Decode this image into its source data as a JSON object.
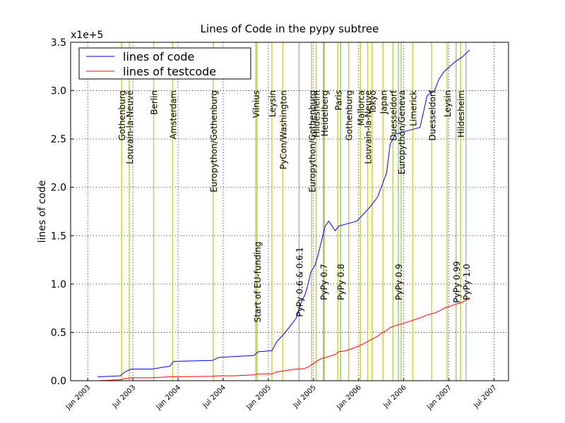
{
  "chart_data": {
    "type": "line",
    "title": "Lines of Code in the pypy subtree",
    "ylabel": "lines of code",
    "y_offset_label": "x1e+5",
    "x": [
      2003.11,
      2003.36,
      2003.41,
      2003.48,
      2003.71,
      2003.91,
      2003.95,
      2004.38,
      2004.45,
      2004.61,
      2004.84,
      2004.89,
      2005.04,
      2005.09,
      2005.16,
      2005.23,
      2005.31,
      2005.36,
      2005.41,
      2005.44,
      2005.47,
      2005.52,
      2005.55,
      2005.59,
      2005.63,
      2005.67,
      2005.74,
      2005.78,
      2005.86,
      2005.98,
      2006.05,
      2006.13,
      2006.21,
      2006.25,
      2006.31,
      2006.35,
      2006.41,
      2006.52,
      2006.68,
      2006.76,
      2006.84,
      2006.89,
      2006.95,
      2007.07,
      2007.15,
      2007.23
    ],
    "series": [
      {
        "name": "lines of code",
        "color": "#0000ff",
        "values": [
          0.04,
          0.05,
          0.09,
          0.12,
          0.12,
          0.15,
          0.2,
          0.21,
          0.24,
          0.25,
          0.26,
          0.3,
          0.31,
          0.4,
          0.47,
          0.55,
          0.65,
          0.8,
          0.9,
          1.0,
          1.12,
          1.2,
          1.3,
          1.45,
          1.6,
          1.65,
          1.55,
          1.6,
          1.62,
          1.65,
          1.72,
          1.8,
          1.9,
          2.0,
          2.15,
          2.45,
          2.55,
          2.58,
          2.62,
          2.95,
          3.0,
          3.12,
          3.2,
          3.3,
          3.35,
          3.42
        ]
      },
      {
        "name": "lines of testcode",
        "color": "#ff0000",
        "values": [
          0.0,
          0.01,
          0.02,
          0.03,
          0.03,
          0.04,
          0.04,
          0.045,
          0.05,
          0.05,
          0.06,
          0.07,
          0.07,
          0.09,
          0.1,
          0.11,
          0.12,
          0.12,
          0.13,
          0.14,
          0.16,
          0.19,
          0.21,
          0.23,
          0.24,
          0.25,
          0.27,
          0.3,
          0.31,
          0.35,
          0.38,
          0.42,
          0.46,
          0.49,
          0.52,
          0.55,
          0.57,
          0.6,
          0.65,
          0.68,
          0.7,
          0.72,
          0.75,
          0.79,
          0.81,
          0.86
        ]
      }
    ],
    "events": {
      "color": "#bfbf00",
      "labels": [
        "Gothenburg",
        "Louvain-la-Neuve",
        "Berlin",
        "Amsterdam",
        "Europython/Gothenburg",
        "Vilnius",
        "Leysin",
        "PyCon/Washington",
        "Europython/Gothenburg",
        "Hildesheim",
        "Heidelberg",
        "Paris",
        "Gothenburg",
        "Mallorca",
        "Louvain-la-Neuve",
        "Tokyo",
        "Japan",
        "Duesseldorf",
        "Europython/Geneva",
        "Limerick",
        "Duesseldorf",
        "Leysin",
        "Hildesheim"
      ],
      "x": [
        2003.375,
        2003.46,
        2003.73,
        2003.94,
        2004.39,
        2004.86,
        2005.04,
        2005.16,
        2005.48,
        2005.53,
        2005.62,
        2005.77,
        2005.89,
        2006.02,
        2006.1,
        2006.15,
        2006.27,
        2006.38,
        2006.47,
        2006.6,
        2006.81,
        2006.98,
        2007.13
      ]
    },
    "releases": {
      "color": "#66b366",
      "labels": [
        "Start of EU-funding",
        "PyPy 0.6 & 0.6.1",
        "PyPy 0.7",
        "PyPy 0.8",
        "PyPy 0.9",
        "PyPy 0.99",
        "PyPy 1.0"
      ],
      "x": [
        2004.875,
        2005.34,
        2005.61,
        2005.8,
        2006.44,
        2007.08,
        2007.19
      ]
    },
    "xlim": [
      2002.81,
      2007.66
    ],
    "ylim": [
      0,
      3.5
    ],
    "xticks": [
      {
        "value": 2003,
        "label": "Jan 2003"
      },
      {
        "value": 2003.5,
        "label": "Jul 2003"
      },
      {
        "value": 2004,
        "label": "Jan 2004"
      },
      {
        "value": 2004.5,
        "label": "Jul 2004"
      },
      {
        "value": 2005,
        "label": "Jan 2005"
      },
      {
        "value": 2005.5,
        "label": "Jul 2005"
      },
      {
        "value": 2006,
        "label": "Jan 2006"
      },
      {
        "value": 2006.5,
        "label": "Jul 2006"
      },
      {
        "value": 2007,
        "label": "Jan 2007"
      },
      {
        "value": 2007.5,
        "label": "Jul 2007"
      }
    ],
    "yticks": [
      {
        "value": 0,
        "label": "0.0"
      },
      0.5,
      {
        "value": 1,
        "label": "1.0"
      },
      1.5,
      {
        "value": 2,
        "label": "2.0"
      },
      2.5,
      {
        "value": 3,
        "label": "3.0"
      },
      3.5
    ],
    "grid": true,
    "legend": "upper-left"
  }
}
